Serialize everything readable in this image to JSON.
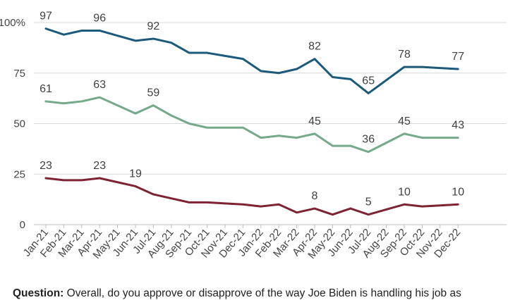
{
  "chart_data": {
    "type": "line",
    "categories": [
      "Jan-21",
      "Feb-21",
      "Mar-21",
      "Apr-21",
      "May-21",
      "Jun-21",
      "Jul-21",
      "Aug-21",
      "Sep-21",
      "Oct-21",
      "Nov-21",
      "Dec-21",
      "Jan-22",
      "Feb-22",
      "Mar-22",
      "Apr-22",
      "May-22",
      "Jun-22",
      "Jul-22",
      "Aug-22",
      "Sep-22",
      "Oct-22",
      "Nov-22",
      "Dec-22"
    ],
    "x_positions": [
      0,
      1,
      2,
      3,
      4,
      5,
      6,
      7,
      8,
      9,
      10,
      11,
      12,
      13,
      14,
      15,
      16,
      17,
      18,
      19,
      20,
      21,
      22,
      23
    ],
    "y_ticks": [
      "100%",
      "75",
      "50",
      "25",
      "0"
    ],
    "y_tick_values": [
      100,
      75,
      50,
      25,
      0
    ],
    "ylim": [
      0,
      100
    ],
    "grid": true,
    "series": [
      {
        "color": "#1b5a7a",
        "points": [
          [
            0,
            97
          ],
          [
            1,
            94
          ],
          [
            2,
            96
          ],
          [
            3,
            96
          ],
          [
            4,
            93.5
          ],
          [
            5,
            91
          ],
          [
            6,
            92
          ],
          [
            7,
            90
          ],
          [
            8,
            85
          ],
          [
            9,
            85
          ],
          [
            10,
            83.5
          ],
          [
            11,
            82
          ],
          [
            12,
            76
          ],
          [
            13,
            75
          ],
          [
            14,
            77
          ],
          [
            15,
            82
          ],
          [
            16,
            73
          ],
          [
            17,
            72
          ],
          [
            18,
            65
          ],
          [
            19,
            71.5
          ],
          [
            20,
            78
          ],
          [
            21,
            78
          ],
          [
            22,
            77.5
          ],
          [
            23,
            77
          ]
        ],
        "labels": [
          {
            "i": 0,
            "text": "97"
          },
          {
            "i": 3,
            "text": "96"
          },
          {
            "i": 6,
            "text": "92"
          },
          {
            "i": 15,
            "text": "82"
          },
          {
            "i": 18,
            "text": "65"
          },
          {
            "i": 20,
            "text": "78"
          },
          {
            "i": 23,
            "text": "77"
          }
        ]
      },
      {
        "color": "#74a98a",
        "points": [
          [
            0,
            61
          ],
          [
            1,
            60
          ],
          [
            2,
            61
          ],
          [
            3,
            63
          ],
          [
            4,
            59
          ],
          [
            5,
            55
          ],
          [
            6,
            59
          ],
          [
            7,
            54
          ],
          [
            8,
            50
          ],
          [
            9,
            48
          ],
          [
            10,
            48
          ],
          [
            11,
            48
          ],
          [
            12,
            43
          ],
          [
            13,
            44
          ],
          [
            14,
            43
          ],
          [
            15,
            45
          ],
          [
            16,
            39
          ],
          [
            17,
            39
          ],
          [
            18,
            36
          ],
          [
            19,
            40.5
          ],
          [
            20,
            45
          ],
          [
            21,
            43
          ],
          [
            22,
            43
          ],
          [
            23,
            43
          ]
        ],
        "labels": [
          {
            "i": 0,
            "text": "61"
          },
          {
            "i": 3,
            "text": "63"
          },
          {
            "i": 6,
            "text": "59"
          },
          {
            "i": 15,
            "text": "45"
          },
          {
            "i": 18,
            "text": "36"
          },
          {
            "i": 20,
            "text": "45"
          },
          {
            "i": 23,
            "text": "43"
          }
        ]
      },
      {
        "color": "#7d2332",
        "points": [
          [
            0,
            23
          ],
          [
            1,
            22
          ],
          [
            2,
            22
          ],
          [
            3,
            23
          ],
          [
            4,
            21
          ],
          [
            5,
            19
          ],
          [
            6,
            15
          ],
          [
            7,
            13
          ],
          [
            8,
            11
          ],
          [
            9,
            11
          ],
          [
            10,
            10.5
          ],
          [
            11,
            10
          ],
          [
            12,
            9
          ],
          [
            13,
            10
          ],
          [
            14,
            6
          ],
          [
            15,
            8
          ],
          [
            16,
            5
          ],
          [
            17,
            8
          ],
          [
            18,
            5
          ],
          [
            19,
            7.5
          ],
          [
            20,
            10
          ],
          [
            21,
            9
          ],
          [
            22,
            9.5
          ],
          [
            23,
            10
          ]
        ],
        "labels": [
          {
            "i": 0,
            "text": "23"
          },
          {
            "i": 3,
            "text": "23"
          },
          {
            "i": 5,
            "text": "19"
          },
          {
            "i": 15,
            "text": "8"
          },
          {
            "i": 18,
            "text": "5"
          },
          {
            "i": 20,
            "text": "10"
          },
          {
            "i": 23,
            "text": "10"
          }
        ]
      }
    ]
  },
  "footer": {
    "question_label": "Question:",
    "question_text": " Overall, do you approve or disapprove of the way Joe Biden is handling his job as"
  }
}
